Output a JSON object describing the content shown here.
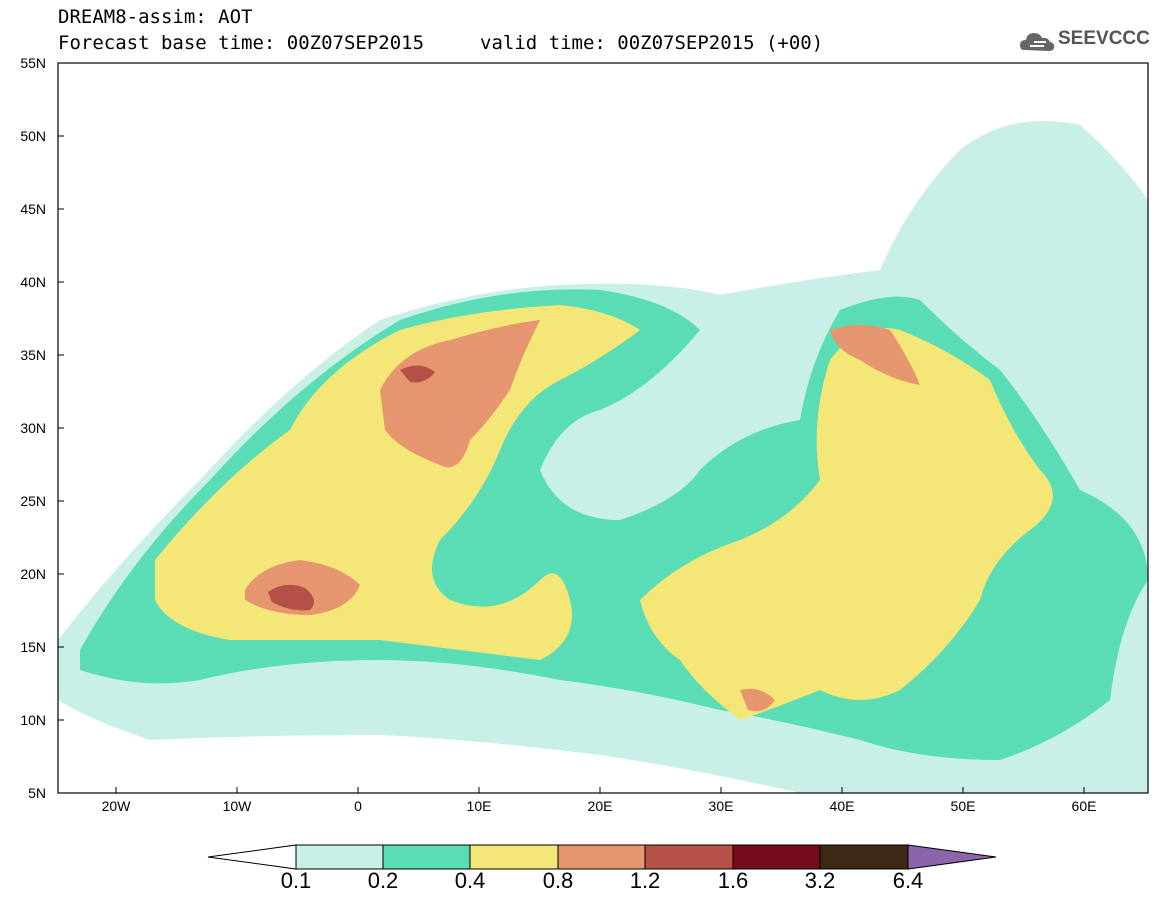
{
  "title": {
    "line1": "DREAM8-assim: AOT",
    "line2": "Forecast base time: 00Z07SEP2015",
    "valid": "valid time: 00Z07SEP2015 (+00)"
  },
  "logo": {
    "text": "SEEVCCC",
    "icon": "cloud-icon"
  },
  "axes": {
    "lat_ticks": [
      "55N",
      "50N",
      "45N",
      "40N",
      "35N",
      "30N",
      "25N",
      "20N",
      "15N",
      "10N",
      "5N"
    ],
    "lon_ticks": [
      "20W",
      "10W",
      "0",
      "10E",
      "20E",
      "30E",
      "40E",
      "50E",
      "60E"
    ]
  },
  "colorbar": {
    "labels": [
      "0.1",
      "0.2",
      "0.4",
      "0.8",
      "1.2",
      "1.6",
      "3.2",
      "6.4"
    ],
    "colors": [
      "#ffffff",
      "#c8f0e6",
      "#5adcb4",
      "#f5e678",
      "#e6966e",
      "#b45046",
      "#780a1e",
      "#3c2814",
      "#8c64aa"
    ]
  },
  "chart_data": {
    "type": "heatmap",
    "variable": "AOT",
    "lat_range": [
      5,
      55
    ],
    "lon_range": [
      -25,
      65
    ]
  }
}
